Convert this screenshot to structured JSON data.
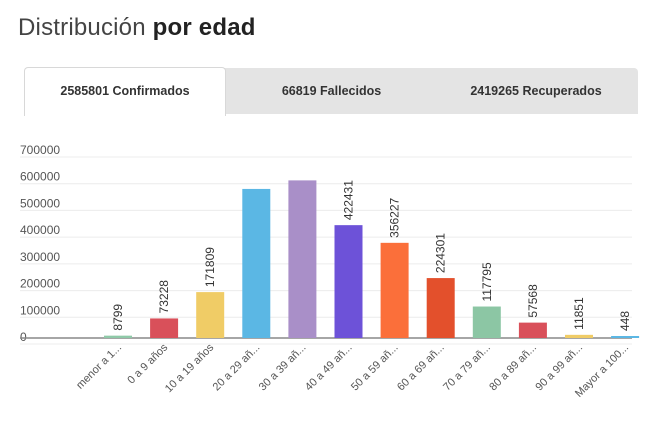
{
  "heading": {
    "light": "Distribución",
    "bold": "por edad"
  },
  "tabs": [
    {
      "label": "2585801 Confirmados",
      "active": true
    },
    {
      "label": "66819 Fallecidos",
      "active": false
    },
    {
      "label": "2419265 Recuperados",
      "active": false
    }
  ],
  "chart_data": {
    "type": "bar",
    "title": "",
    "xlabel": "",
    "ylabel": "",
    "ylim": [
      0,
      700000
    ],
    "yticks": [
      "700000",
      "600000",
      "500000",
      "400000",
      "300000",
      "200000",
      "100000",
      "0"
    ],
    "categories": [
      "menor a 1...",
      "0 a 9 años",
      "10 a 19 años",
      "20 a 29 añ...",
      "30 a 39 añ...",
      "40 a 49 añ...",
      "50 a 59 añ...",
      "60 a 69 añ...",
      "70 a 79 añ...",
      "80 a 89 añ...",
      "90 a 99 añ...",
      "Mayor a 100..."
    ],
    "values": [
      8799,
      73228,
      171809,
      558000,
      590000,
      422431,
      356227,
      224301,
      117795,
      57568,
      11851,
      448
    ],
    "data_labels": [
      "8799",
      "73228",
      "171809",
      "",
      "",
      "422431",
      "356227",
      "224301",
      "117795",
      "57568",
      "11851",
      "448"
    ],
    "colors": [
      "#8fc9a8",
      "#d9505a",
      "#f0cc66",
      "#5bb7e4",
      "#a98fc8",
      "#6d52d8",
      "#fb6f3a",
      "#e3502c",
      "#8cc6a4",
      "#d9505a",
      "#f0cc66",
      "#5bb7e4"
    ],
    "grid": true,
    "legend": "none"
  }
}
